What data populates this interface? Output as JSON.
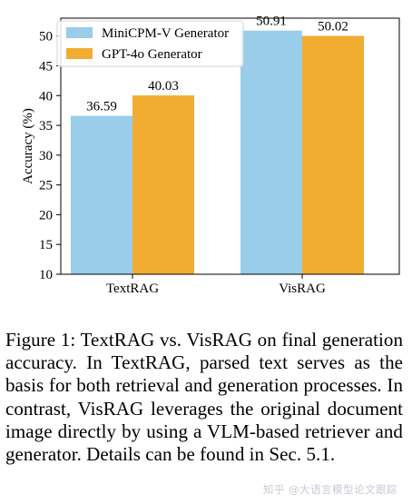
{
  "chart_data": {
    "type": "bar",
    "categories": [
      "TextRAG",
      "VisRAG"
    ],
    "series": [
      {
        "name": "MiniCPM-V Generator",
        "values": [
          36.59,
          50.91
        ],
        "color": "#99cdea"
      },
      {
        "name": "GPT-4o Generator",
        "values": [
          40.03,
          50.02
        ],
        "color": "#f1ad31"
      }
    ],
    "value_labels": [
      [
        "36.59",
        "50.91"
      ],
      [
        "40.03",
        "50.02"
      ]
    ],
    "ylabel": "Accuracy (%)",
    "ylim": [
      10,
      53
    ],
    "yticks": [
      10,
      15,
      20,
      25,
      30,
      35,
      40,
      45,
      50
    ],
    "legend_position": "top-left",
    "grid": false
  },
  "caption": "Figure 1: TextRAG vs. VisRAG on final generation accuracy. In TextRAG, parsed text serves as the basis for both retrieval and generation processes. In contrast, VisRAG leverages the original document image directly by using a VLM-based retriever and generator. Details can be found in Sec. 5.1.",
  "watermark": "知乎 @大语言模型论文跟踪"
}
